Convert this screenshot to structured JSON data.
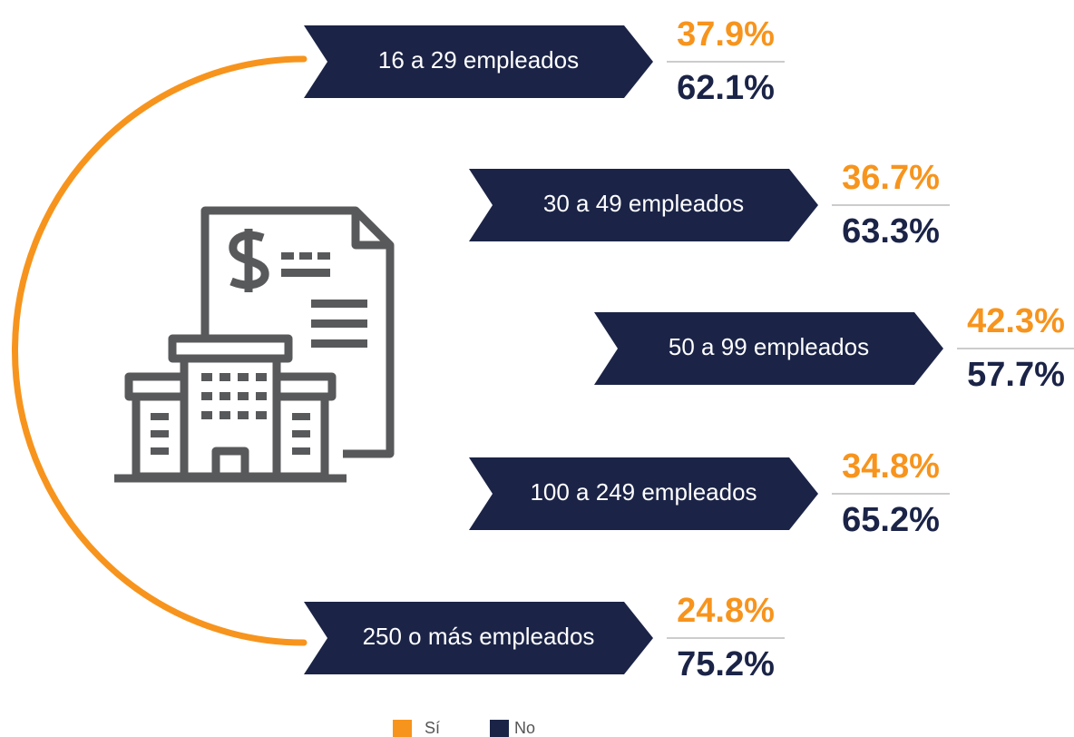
{
  "items": [
    {
      "label": "16 a 29 empleados",
      "si": "37.9%",
      "no": "62.1%"
    },
    {
      "label": "30 a 49 empleados",
      "si": "36.7%",
      "no": "63.3%"
    },
    {
      "label": "50 a 99 empleados",
      "si": "42.3%",
      "no": "57.7%"
    },
    {
      "label": "100 a 249 empleados",
      "si": "34.8%",
      "no": "65.2%"
    },
    {
      "label": "250 o más empleados",
      "si": "24.8%",
      "no": "75.2%"
    }
  ],
  "legend": [
    {
      "label": "Sí",
      "color": "#f7941d"
    },
    {
      "label": "No",
      "color": "#1b2447"
    }
  ]
}
